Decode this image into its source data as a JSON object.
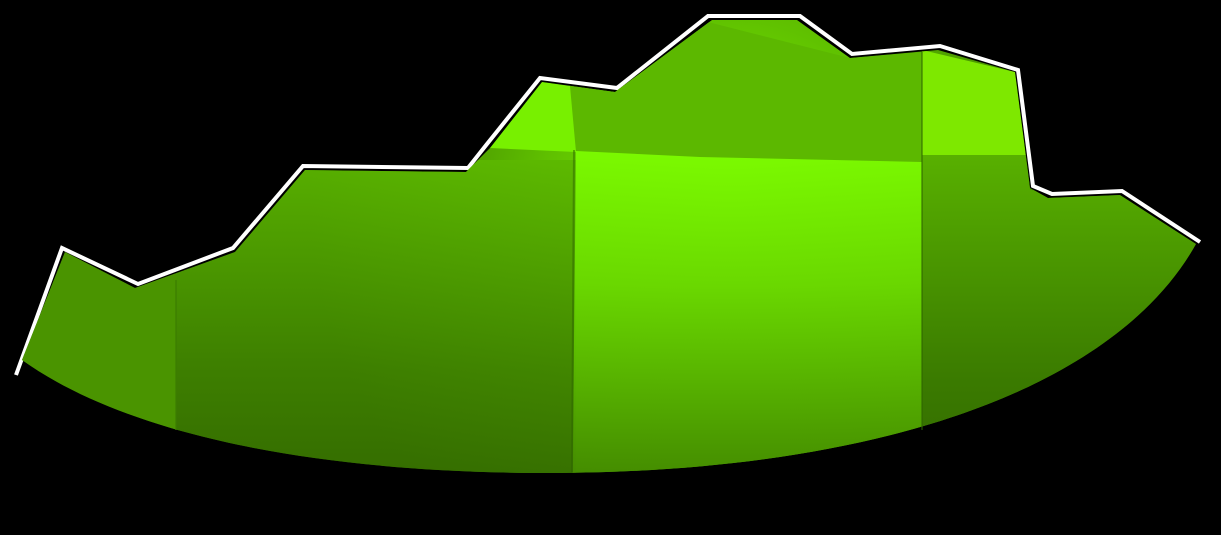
{
  "scene": {
    "background_color": "#000000",
    "subject": "green-terrain-slice-graphic",
    "colors": {
      "bright_green": "#7cfc00",
      "mid_green": "#5cb800",
      "dark_green": "#2f6200",
      "highlight_edge": "#ffffff"
    }
  }
}
